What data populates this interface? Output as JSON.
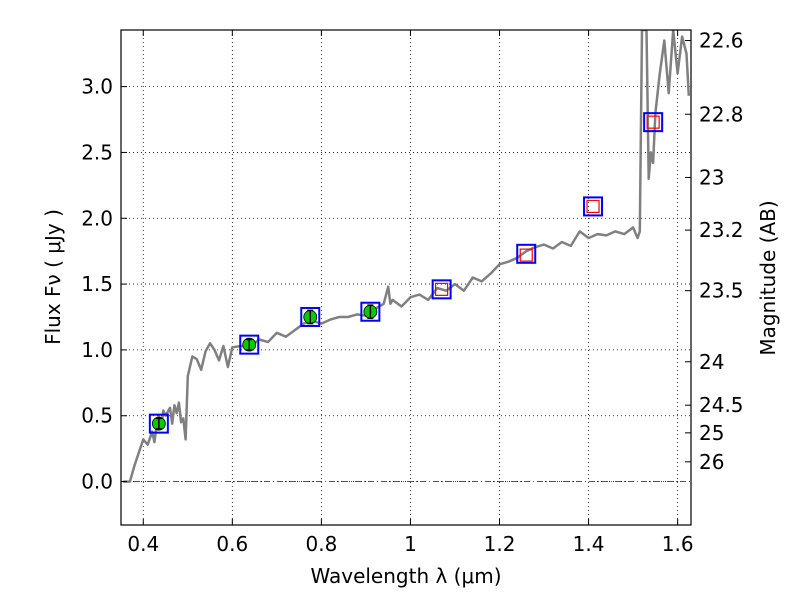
{
  "chart_data": {
    "type": "line",
    "xlabel": "Wavelength  λ (μm)",
    "ylabel": "Flux  Fν  ( μJy )",
    "ylabel_right": "Magnitude (AB)",
    "xlim": [
      0.35,
      1.63
    ],
    "ylim": [
      -0.33,
      3.43
    ],
    "grid": true,
    "x_ticks": [
      0.4,
      0.6,
      0.8,
      1.0,
      1.2,
      1.4,
      1.6
    ],
    "x_tick_labels": [
      "0.4",
      "0.6",
      "0.8",
      "1",
      "1.2",
      "1.4",
      "1.6"
    ],
    "y_ticks": [
      0.0,
      0.5,
      1.0,
      1.5,
      2.0,
      2.5,
      3.0
    ],
    "y_tick_labels": [
      "0.0",
      "0.5",
      "1.0",
      "1.5",
      "2.0",
      "2.5",
      "3.0"
    ],
    "right_ticks": [
      {
        "label": "22.6",
        "flux": 3.35
      },
      {
        "label": "22.8",
        "flux": 2.79
      },
      {
        "label": "23",
        "flux": 2.31
      },
      {
        "label": "23.2",
        "flux": 1.91
      },
      {
        "label": "23.5",
        "flux": 1.45
      },
      {
        "label": "24",
        "flux": 0.91
      },
      {
        "label": "24.5",
        "flux": 0.58
      },
      {
        "label": "25",
        "flux": 0.37
      },
      {
        "label": "26",
        "flux": 0.15
      }
    ],
    "sed_model": {
      "color": "#808080",
      "x": [
        0.355,
        0.37,
        0.38,
        0.39,
        0.4,
        0.41,
        0.42,
        0.425,
        0.43,
        0.435,
        0.44,
        0.445,
        0.45,
        0.46,
        0.465,
        0.47,
        0.475,
        0.48,
        0.485,
        0.49,
        0.495,
        0.5,
        0.51,
        0.52,
        0.53,
        0.54,
        0.55,
        0.56,
        0.57,
        0.58,
        0.59,
        0.6,
        0.62,
        0.64,
        0.66,
        0.68,
        0.7,
        0.72,
        0.74,
        0.76,
        0.78,
        0.8,
        0.82,
        0.84,
        0.86,
        0.88,
        0.9,
        0.92,
        0.94,
        0.95,
        0.955,
        0.96,
        0.98,
        1.0,
        1.02,
        1.04,
        1.06,
        1.08,
        1.1,
        1.12,
        1.14,
        1.16,
        1.18,
        1.2,
        1.22,
        1.24,
        1.26,
        1.28,
        1.3,
        1.32,
        1.34,
        1.36,
        1.38,
        1.4,
        1.42,
        1.44,
        1.46,
        1.48,
        1.5,
        1.51,
        1.515,
        1.52,
        1.525,
        1.53,
        1.535,
        1.54,
        1.545,
        1.55,
        1.56,
        1.57,
        1.58,
        1.59,
        1.6,
        1.61,
        1.62,
        1.625
      ],
      "y": [
        0.0,
        0.0,
        0.12,
        0.22,
        0.32,
        0.28,
        0.38,
        0.3,
        0.42,
        0.5,
        0.4,
        0.54,
        0.5,
        0.56,
        0.44,
        0.58,
        0.52,
        0.6,
        0.45,
        0.48,
        0.32,
        0.8,
        0.95,
        0.93,
        0.85,
        0.99,
        1.05,
        1.0,
        0.92,
        1.03,
        0.87,
        1.02,
        1.03,
        1.02,
        1.08,
        1.06,
        1.13,
        1.1,
        1.15,
        1.2,
        1.22,
        1.2,
        1.23,
        1.25,
        1.25,
        1.27,
        1.26,
        1.31,
        1.35,
        1.48,
        1.35,
        1.38,
        1.33,
        1.4,
        1.42,
        1.38,
        1.47,
        1.45,
        1.5,
        1.45,
        1.55,
        1.52,
        1.58,
        1.65,
        1.67,
        1.7,
        1.75,
        1.78,
        1.8,
        1.77,
        1.82,
        1.79,
        1.9,
        1.85,
        1.88,
        1.87,
        1.9,
        1.88,
        1.93,
        1.85,
        1.9,
        3.43,
        3.43,
        3.43,
        2.3,
        2.5,
        2.42,
        2.8,
        3.1,
        3.35,
        2.95,
        3.43,
        3.1,
        3.38,
        3.25,
        2.93
      ]
    },
    "synthetic_photometry": {
      "color": "#0000ff",
      "marker": "open-square",
      "x": [
        0.435,
        0.638,
        0.775,
        0.91,
        1.07,
        1.26,
        1.41,
        1.545
      ],
      "y": [
        0.44,
        1.04,
        1.25,
        1.29,
        1.46,
        1.73,
        2.09,
        2.73
      ]
    },
    "observed_photometry": {
      "color": "#00cc00",
      "marker": "filled-circle",
      "x": [
        0.435,
        0.638,
        0.775,
        0.91
      ],
      "y": [
        0.44,
        1.04,
        1.25,
        1.29
      ],
      "err": [
        0.04,
        0.04,
        0.05,
        0.05
      ]
    },
    "upper_limits": {
      "color": "#ff0000",
      "marker": "open-square",
      "x": [
        1.07,
        1.26,
        1.41,
        1.545
      ],
      "y": [
        1.46,
        1.72,
        2.09,
        2.73
      ]
    }
  }
}
